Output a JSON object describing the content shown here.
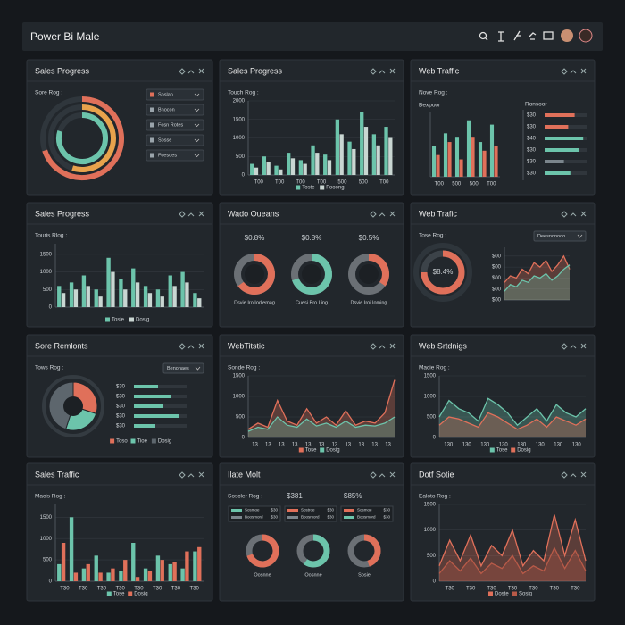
{
  "header": {
    "title": "Power Bi Male"
  },
  "panels": [
    {
      "type": "rings",
      "title": "Sales Progress",
      "subtitle": "Sore Rog :",
      "rings": [
        {
          "color": "#e0705a",
          "value": 70
        },
        {
          "color": "#e8a24c",
          "value": 55
        },
        {
          "color": "#6cc4ab",
          "value": 80
        }
      ],
      "items": [
        "Soslan",
        "Bnocon",
        "Fosn Rotes",
        "Sosse",
        "Foesdes"
      ]
    },
    {
      "type": "bars",
      "title": "Sales Progress",
      "subtitle": "Touch Rog :",
      "ylim": [
        0,
        2000
      ],
      "yticks": [
        0,
        500,
        1000,
        1500,
        2000
      ],
      "xlabels": [
        "T00",
        "T00",
        "T00",
        "T00",
        "500",
        "500",
        "T00"
      ],
      "series": [
        {
          "name": "Toste",
          "color": "#6cc4ab",
          "values": [
            300,
            500,
            250,
            600,
            400,
            800,
            550,
            1500,
            900,
            1700,
            1100,
            1300
          ]
        },
        {
          "name": "Fooong",
          "color": "#c9d6d2",
          "values": [
            200,
            350,
            150,
            450,
            300,
            600,
            400,
            1100,
            700,
            1300,
            800,
            1000
          ]
        }
      ]
    },
    {
      "type": "bars-hbars",
      "title": "Web Traffic",
      "subtitle": "Nove Rog :",
      "subtitle2": "Bexpoor",
      "hbar_title": "Ronsoor",
      "ylim": [
        0,
        1500
      ],
      "yticks": [],
      "xlabels": [
        "T00",
        "500",
        "500",
        "T00"
      ],
      "series": [
        {
          "color": "#6cc4ab",
          "values": [
            700,
            1000,
            900,
            1300,
            800,
            1200
          ]
        },
        {
          "color": "#e0705a",
          "values": [
            500,
            800,
            400,
            900,
            600,
            700
          ]
        }
      ],
      "hlim": [
        0,
        100
      ],
      "hbars": [
        {
          "label": "$30",
          "value": 70,
          "color": "#e0705a"
        },
        {
          "label": "$30",
          "value": 55,
          "color": "#e0705a"
        },
        {
          "label": "$40",
          "value": 90,
          "color": "#6cc4ab"
        },
        {
          "label": "$30",
          "value": 80,
          "color": "#6cc4ab"
        },
        {
          "label": "$30",
          "value": 45,
          "color": "#7b858c"
        },
        {
          "label": "$30",
          "value": 60,
          "color": "#6cc4ab"
        }
      ]
    },
    {
      "type": "bars",
      "title": "Sales Progress",
      "subtitle": "Touris Rlog :",
      "ylim": [
        0,
        1800
      ],
      "yticks": [
        0,
        500,
        1000,
        1500
      ],
      "series": [
        {
          "name": "Tosie",
          "color": "#6cc4ab",
          "values": [
            600,
            700,
            900,
            500,
            1400,
            800,
            1100,
            600,
            500,
            900,
            1000,
            400
          ]
        },
        {
          "name": "Dosig",
          "color": "#c9d6d2",
          "values": [
            400,
            500,
            600,
            300,
            1000,
            500,
            700,
            400,
            300,
            600,
            700,
            250
          ]
        }
      ]
    },
    {
      "type": "donuts",
      "title": "Wado Oueans",
      "donuts": [
        {
          "heading": "$0.8%",
          "value": 65,
          "color": "#e0705a",
          "caption": "Dsvie Iro Iodiemag"
        },
        {
          "heading": "$0.8%",
          "value": 70,
          "color": "#6cc4ab",
          "caption": "Cuesi Bro Ling"
        },
        {
          "heading": "$0.5%",
          "value": 35,
          "color": "#e0705a",
          "caption": "Dsvie Iroi Ioming"
        }
      ]
    },
    {
      "type": "donut-area",
      "title": "Web Trafic",
      "subtitle": "Tose Rog :",
      "dropdown": "Deesnonooo",
      "donut": {
        "value": 75,
        "color": "#e0705a",
        "center": "$8.4%"
      },
      "ylim": [
        0,
        120
      ],
      "yticks": [
        {
          "value": 0,
          "label": "$00"
        },
        {
          "value": 25,
          "label": "$00"
        },
        {
          "value": 50,
          "label": "$00"
        },
        {
          "value": 75,
          "label": "$00"
        },
        {
          "value": 100,
          "label": "$00"
        }
      ],
      "series": [
        {
          "color": "#e0705a",
          "values": [
            40,
            55,
            50,
            70,
            60,
            85,
            75,
            90,
            65,
            80,
            100,
            70
          ]
        },
        {
          "color": "#6cc4ab",
          "values": [
            20,
            35,
            30,
            45,
            40,
            55,
            50,
            60,
            45,
            55,
            70,
            80
          ]
        }
      ]
    },
    {
      "type": "pie-hbars",
      "title": "Sore Remlonts",
      "subtitle": "Tows Rog :",
      "dropdown": "Benonaes",
      "slices": [
        {
          "name": "Toso",
          "color": "#e0705a",
          "value": 30
        },
        {
          "name": "Tioe",
          "color": "#6cc4ab",
          "value": 25
        },
        {
          "name": "Dosig",
          "color": "#5d666d",
          "value": 45
        }
      ],
      "hlim": [
        0,
        100
      ],
      "hbars": [
        {
          "label": "$30",
          "value": 45,
          "color": "#6cc4ab"
        },
        {
          "label": "$30",
          "value": 70,
          "color": "#6cc4ab"
        },
        {
          "label": "$30",
          "value": 55,
          "color": "#6cc4ab"
        },
        {
          "label": "$30",
          "value": 85,
          "color": "#6cc4ab"
        },
        {
          "label": "$30",
          "value": 40,
          "color": "#6cc4ab"
        }
      ]
    },
    {
      "type": "area",
      "title": "WebTitstic",
      "subtitle": "Sonde Rog :",
      "ylim": [
        0,
        1500
      ],
      "yticks": [
        0,
        500,
        1000,
        1500
      ],
      "xlabels": [
        "13",
        "13",
        "13",
        "13",
        "13",
        "13",
        "13",
        "13",
        "13",
        "13",
        "13"
      ],
      "series": [
        {
          "name": "Tose",
          "color": "#e0705a",
          "values": [
            200,
            350,
            250,
            900,
            400,
            300,
            700,
            350,
            500,
            300,
            650,
            300,
            400,
            350,
            600,
            1400
          ]
        },
        {
          "name": "Dosig",
          "color": "#6cc4ab",
          "values": [
            150,
            250,
            200,
            500,
            300,
            250,
            450,
            280,
            350,
            250,
            400,
            250,
            300,
            280,
            350,
            500
          ]
        }
      ]
    },
    {
      "type": "area",
      "title": "Web Srtdnigs",
      "subtitle": "Macie Rog :",
      "ylim": [
        0,
        1500
      ],
      "yticks": [
        0,
        500,
        1000,
        1500
      ],
      "xlabels": [
        "130",
        "130",
        "130",
        "130",
        "130",
        "130",
        "130",
        "130"
      ],
      "series": [
        {
          "name": "Tose",
          "color": "#6cc4ab",
          "values": [
            500,
            900,
            700,
            600,
            400,
            950,
            800,
            600,
            300,
            500,
            700,
            400,
            800,
            600,
            500,
            700
          ]
        },
        {
          "name": "Dosig",
          "color": "#e0705a",
          "values": [
            300,
            500,
            450,
            350,
            250,
            600,
            500,
            350,
            200,
            300,
            450,
            250,
            500,
            400,
            300,
            450
          ]
        }
      ]
    },
    {
      "type": "bars",
      "title": "Sales Traffic",
      "subtitle": "Macis Rog :",
      "ylim": [
        0,
        1800
      ],
      "yticks": [
        0,
        500,
        1000,
        1500
      ],
      "xlabels": [
        "T30",
        "T30",
        "T30",
        "T30",
        "T30",
        "T30",
        "T30",
        "T30"
      ],
      "series": [
        {
          "name": "Tose",
          "color": "#6cc4ab",
          "values": [
            400,
            1500,
            300,
            600,
            200,
            250,
            900,
            300,
            600,
            400,
            300,
            700
          ]
        },
        {
          "name": "Dosig",
          "color": "#e0705a",
          "values": [
            900,
            200,
            400,
            200,
            300,
            500,
            100,
            250,
            500,
            450,
            700,
            800
          ]
        }
      ]
    },
    {
      "type": "donuts-tables",
      "title": "Ilate Molt",
      "subtitle": "Soscler Rog :",
      "headings": [
        "$381",
        "$85%"
      ],
      "tables": [
        [
          {
            "label": "Sosmoe",
            "amount": "$30",
            "color": "#6cc4ab"
          },
          {
            "label": "Boosmord",
            "amount": "$30",
            "color": "#7b858c"
          }
        ],
        [
          {
            "label": "Sostroe",
            "amount": "$30",
            "color": "#e0705a"
          },
          {
            "label": "Boosmord",
            "amount": "$30",
            "color": "#7b858c"
          }
        ],
        [
          {
            "label": "Sosmoe",
            "amount": "$30",
            "color": "#e0705a"
          },
          {
            "label": "Boosmord",
            "amount": "$30",
            "color": "#6cc4ab"
          }
        ]
      ],
      "donuts": [
        {
          "value": 70,
          "color": "#e0705a",
          "caption": "Oosnne"
        },
        {
          "value": 60,
          "color": "#6cc4ab",
          "caption": "Oosnne"
        },
        {
          "value": 45,
          "color": "#e0705a",
          "caption": "Sosie"
        }
      ]
    },
    {
      "type": "area",
      "title": "Dotf Sotie",
      "subtitle": "Ealoto Rog :",
      "ylim": [
        0,
        1500
      ],
      "yticks": [
        0,
        500,
        1000,
        1500
      ],
      "xlabels": [
        "T30",
        "T30",
        "T30",
        "T30",
        "T30",
        "T30",
        "T30"
      ],
      "series": [
        {
          "name": "Doste",
          "color": "#e0705a",
          "values": [
            300,
            800,
            400,
            900,
            300,
            700,
            500,
            1000,
            300,
            600,
            400,
            1300,
            500,
            1200,
            400
          ]
        },
        {
          "name": "Sosig",
          "color": "#b85a48",
          "values": [
            150,
            400,
            200,
            450,
            150,
            350,
            250,
            500,
            150,
            300,
            200,
            650,
            250,
            600,
            200
          ]
        }
      ]
    }
  ]
}
